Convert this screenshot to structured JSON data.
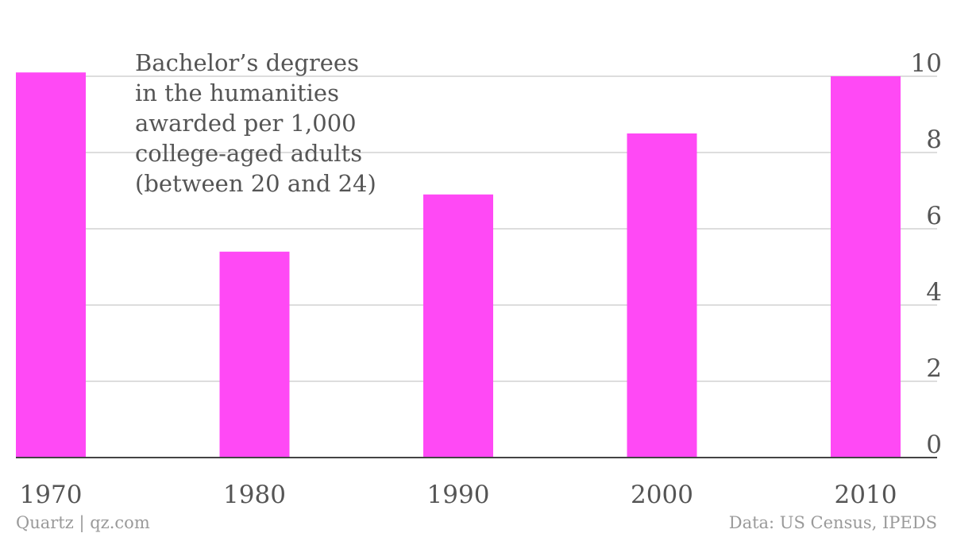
{
  "chart_data": {
    "type": "bar",
    "title_lines": [
      "Bachelor’s degrees",
      "in the humanities",
      "awarded per 1,000",
      "college-aged adults",
      "(between 20 and 24)"
    ],
    "categories": [
      "1970",
      "1980",
      "1990",
      "2000",
      "2010"
    ],
    "values": [
      10.1,
      5.4,
      6.9,
      8.5,
      10.0
    ],
    "ylim": [
      0,
      10
    ],
    "yticks": [
      "0",
      "2",
      "4",
      "6",
      "8",
      "10"
    ],
    "y_axis_side": "right",
    "grid": true,
    "bar_color": "#ff49f5"
  },
  "footer": {
    "source_left": "Quartz | qz.com",
    "source_right": "Data: US Census, IPEDS"
  }
}
